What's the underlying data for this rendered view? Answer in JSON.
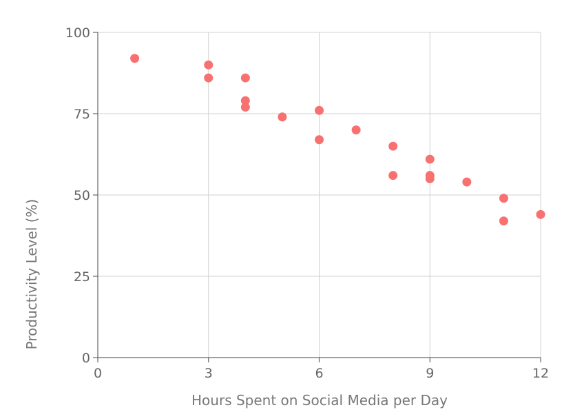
{
  "chart_data": {
    "type": "scatter",
    "title": "",
    "xlabel": "Hours Spent on Social Media per Day",
    "ylabel": "Productivity Level (%)",
    "xlim": [
      0,
      12
    ],
    "ylim": [
      0,
      100
    ],
    "xticks": [
      0,
      3,
      6,
      9,
      12
    ],
    "yticks": [
      0,
      25,
      50,
      75,
      100
    ],
    "grid": true,
    "point_color": "#f87171",
    "points": [
      {
        "x": 1,
        "y": 92
      },
      {
        "x": 3,
        "y": 90
      },
      {
        "x": 3,
        "y": 86
      },
      {
        "x": 4,
        "y": 86
      },
      {
        "x": 4,
        "y": 79
      },
      {
        "x": 4,
        "y": 77
      },
      {
        "x": 5,
        "y": 74
      },
      {
        "x": 6,
        "y": 76
      },
      {
        "x": 6,
        "y": 67
      },
      {
        "x": 7,
        "y": 70
      },
      {
        "x": 8,
        "y": 65
      },
      {
        "x": 8,
        "y": 56
      },
      {
        "x": 9,
        "y": 61
      },
      {
        "x": 9,
        "y": 56
      },
      {
        "x": 9,
        "y": 55
      },
      {
        "x": 10,
        "y": 54
      },
      {
        "x": 11,
        "y": 49
      },
      {
        "x": 11,
        "y": 42
      },
      {
        "x": 12,
        "y": 44
      }
    ]
  }
}
